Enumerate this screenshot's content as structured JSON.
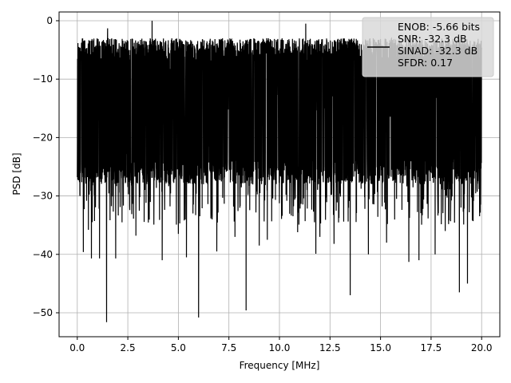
{
  "chart_data": {
    "type": "line",
    "xlabel": "Frequency [MHz]",
    "ylabel": "PSD [dB]",
    "xlim": [
      -0.9,
      20.9
    ],
    "ylim": [
      -54.1,
      1.5
    ],
    "xticks": [
      0.0,
      2.5,
      5.0,
      7.5,
      10.0,
      12.5,
      15.0,
      17.5,
      20.0
    ],
    "xtick_labels": [
      "0.0",
      "2.5",
      "5.0",
      "7.5",
      "10.0",
      "12.5",
      "15.0",
      "17.5",
      "20.0"
    ],
    "yticks": [
      0,
      -10,
      -20,
      -30,
      -40,
      -50
    ],
    "ytick_labels": [
      "0",
      "−10",
      "−20",
      "−30",
      "−40",
      "−50"
    ],
    "grid": true,
    "legend_position": "top-right",
    "legend_lines": [
      "ENOB: -5.66 bits",
      "SNR: -32.3 dB",
      "SINAD: -32.3 dB",
      "SFDR: 0.17"
    ],
    "series": [
      {
        "color": "#000000",
        "noise_band": {
          "x_start": 0.0,
          "x_end": 20.0,
          "dense_top": -3.0,
          "dense_bottom": -28.0
        },
        "peaks": [
          [
            3.7,
            0.0
          ],
          [
            11.3,
            -0.5
          ],
          [
            1.5,
            -1.3
          ]
        ],
        "dips": [
          [
            0.3,
            -39.6
          ],
          [
            0.7,
            -40.7
          ],
          [
            1.1,
            -40.7
          ],
          [
            1.45,
            -51.6
          ],
          [
            1.9,
            -40.7
          ],
          [
            3.7,
            -43.9
          ],
          [
            4.2,
            -41.0
          ],
          [
            5.4,
            -40.5
          ],
          [
            6.0,
            -50.8
          ],
          [
            6.9,
            -39.5
          ],
          [
            8.35,
            -49.6
          ],
          [
            9.0,
            -38.5
          ],
          [
            11.8,
            -39.9
          ],
          [
            12.0,
            -37.0
          ],
          [
            12.7,
            -38.2
          ],
          [
            13.5,
            -47.0
          ],
          [
            14.4,
            -40.0
          ],
          [
            16.4,
            -41.3
          ],
          [
            16.9,
            -41.0
          ],
          [
            17.7,
            -40.0
          ],
          [
            18.9,
            -46.5
          ],
          [
            19.3,
            -45.0
          ],
          [
            18.2,
            -36.0
          ],
          [
            9.4,
            -37.5
          ],
          [
            5.0,
            -36.5
          ],
          [
            0.55,
            -35.8
          ],
          [
            15.3,
            -38.0
          ],
          [
            2.9,
            -36.8
          ],
          [
            7.8,
            -37.0
          ],
          [
            10.9,
            -36.2
          ]
        ],
        "num_points": 3000
      }
    ]
  }
}
